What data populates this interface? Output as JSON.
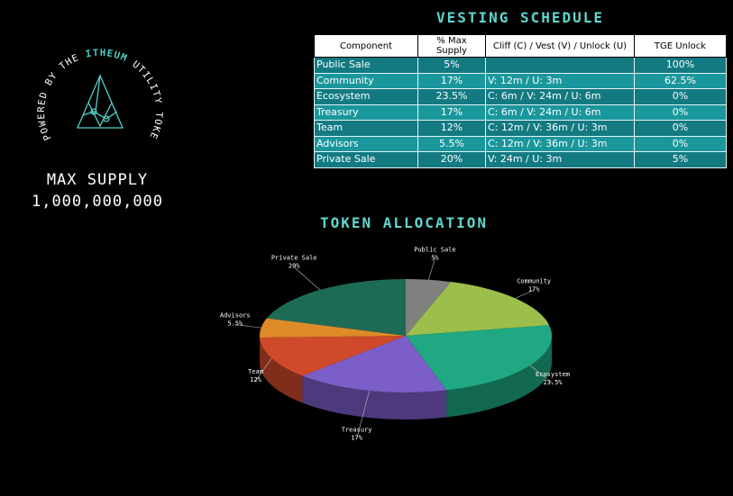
{
  "badge": {
    "ring_text": "POWERED BY THE ITHEUM UTILITY TOKEN",
    "ring_prefix": "POWERED BY THE ",
    "ring_brand": "ITHEUM",
    "ring_suffix": " UTILITY TOKEN",
    "accent": "#4fd0c8"
  },
  "supply": {
    "title": "MAX SUPPLY",
    "value": "1,000,000,000"
  },
  "vesting": {
    "title": "VESTING SCHEDULE",
    "headers": [
      "Component",
      "% Max Supply",
      "Cliff (C) / Vest (V) / Unlock (U)",
      "TGE Unlock"
    ],
    "rows": [
      {
        "component": "Public Sale",
        "pct": "5%",
        "schedule": "",
        "tge": "100%"
      },
      {
        "component": "Community",
        "pct": "17%",
        "schedule": "V: 12m / U: 3m",
        "tge": "62.5%"
      },
      {
        "component": "Ecosystem",
        "pct": "23.5%",
        "schedule": "C:  6m / V: 24m / U: 6m",
        "tge": "0%"
      },
      {
        "component": "Treasury",
        "pct": "17%",
        "schedule": "C:  6m / V: 24m / U: 6m",
        "tge": "0%"
      },
      {
        "component": "Team",
        "pct": "12%",
        "schedule": "C: 12m / V: 36m / U: 3m",
        "tge": "0%"
      },
      {
        "component": "Advisors",
        "pct": "5.5%",
        "schedule": "C: 12m / V: 36m / U: 3m",
        "tge": "0%"
      },
      {
        "component": "Private Sale",
        "pct": "20%",
        "schedule": "V: 24m / U: 3m",
        "tge": "5%"
      }
    ],
    "row_colors": [
      "#137a82",
      "#1a979c"
    ]
  },
  "chart_data": {
    "type": "pie",
    "title": "TOKEN ALLOCATION",
    "categories": [
      "Public Sale",
      "Community",
      "Ecosystem",
      "Treasury",
      "Team",
      "Advisors",
      "Private Sale"
    ],
    "values": [
      5,
      17,
      23.5,
      17,
      12,
      5.5,
      20
    ],
    "labels": [
      "5%",
      "17%",
      "23.5%",
      "17%",
      "12%",
      "5.5%",
      "20%"
    ],
    "colors": [
      "#808080",
      "#9bbf4a",
      "#1fa882",
      "#7c5ec9",
      "#cf4a2b",
      "#dd8a28",
      "#1e6b55"
    ],
    "style": "3d"
  }
}
